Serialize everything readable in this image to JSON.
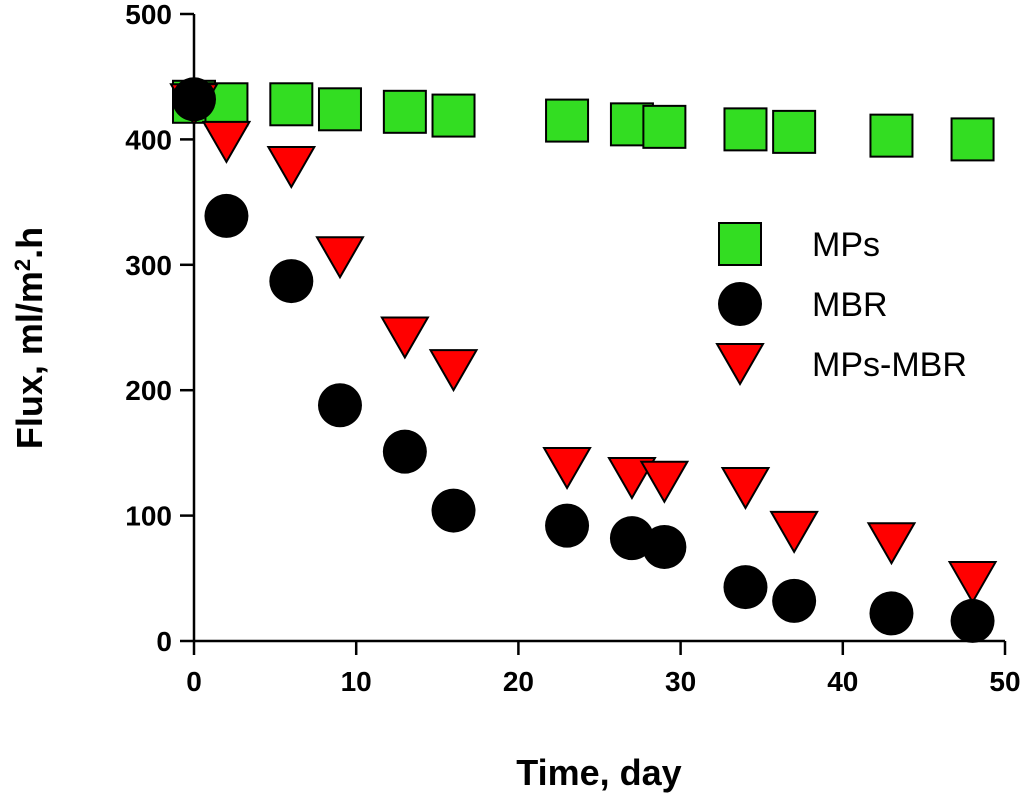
{
  "chart_data": {
    "type": "scatter",
    "xlabel": "Time, day",
    "ylabel": {
      "prefix": "Flux, ml/m",
      "sup": "2",
      "suffix": ".h"
    },
    "xlim": [
      0,
      50
    ],
    "ylim": [
      0,
      500
    ],
    "xticks": [
      0,
      10,
      20,
      30,
      40,
      50
    ],
    "yticks": [
      0,
      100,
      200,
      300,
      400,
      500
    ],
    "grid": false,
    "legend_position": "right-middle",
    "series": [
      {
        "name": "MPs",
        "marker": "square",
        "color": "#33DD22",
        "x": [
          0,
          2,
          6,
          9,
          13,
          16,
          23,
          27,
          29,
          34,
          37,
          43,
          48
        ],
        "y": [
          430,
          428,
          428,
          424,
          422,
          419,
          415,
          412,
          410,
          408,
          406,
          403,
          400
        ]
      },
      {
        "name": "MBR",
        "marker": "circle",
        "color": "#000000",
        "x": [
          0,
          2,
          6,
          9,
          13,
          16,
          23,
          27,
          29,
          34,
          37,
          43,
          48
        ],
        "y": [
          432,
          339,
          287,
          188,
          151,
          104,
          92,
          82,
          75,
          43,
          32,
          22,
          16
        ]
      },
      {
        "name": "MPs-MBR",
        "marker": "triangle-down",
        "color": "#FF0000",
        "x": [
          0,
          2,
          6,
          9,
          13,
          16,
          23,
          27,
          29,
          34,
          37,
          43,
          48
        ],
        "y": [
          428,
          398,
          378,
          306,
          242,
          216,
          138,
          130,
          127,
          122,
          87,
          78,
          47
        ]
      }
    ]
  }
}
